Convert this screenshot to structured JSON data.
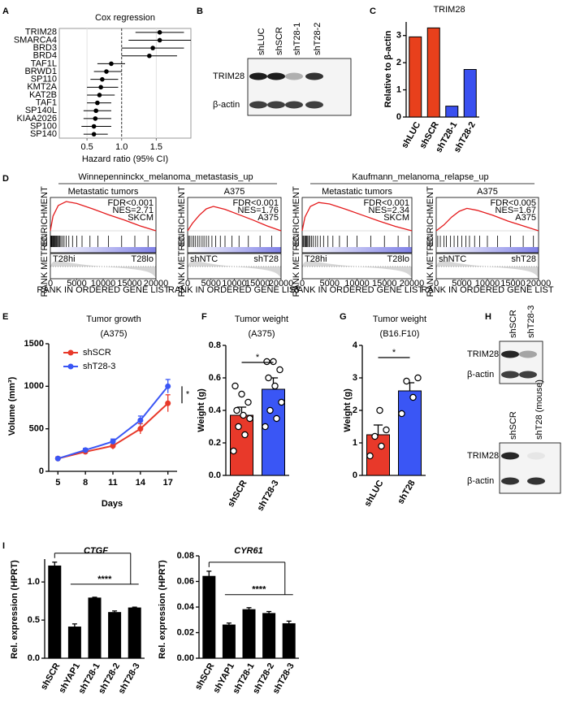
{
  "panels": [
    "A",
    "B",
    "C",
    "D",
    "E",
    "F",
    "G",
    "H",
    "I"
  ],
  "gene_sets": [
    "Winnepenninckx_melanoma_metastasis_up",
    "Kaufmann_melanoma_relapse_up"
  ],
  "blots": [
    {
      "lanes": [
        "shLUC",
        "shSCR",
        "shT28-1",
        "shT28-2"
      ],
      "rows": [
        "TRIM28",
        "β-actin"
      ]
    },
    {
      "lanes": [
        "shSCR",
        "shT28-3"
      ],
      "rows": [
        "TRIM28",
        "β-actin"
      ]
    },
    {
      "lanes": [
        "shSCR",
        "shT28 (mouse)"
      ],
      "rows": [
        "TRIM28",
        "β-actin"
      ]
    }
  ],
  "chart_data": [
    {
      "type": "forest",
      "title": "Cox regression",
      "xlabel": "Hazard ratio (95% CI)",
      "categories": [
        "TRIM28",
        "SMARCA4",
        "BRD3",
        "BRD4",
        "TAF1L",
        "BRWD1",
        "SP110",
        "KMT2A",
        "KAT2B",
        "TAF1",
        "SP140L",
        "KIAA2026",
        "SP100",
        "SP140"
      ],
      "values": [
        1.55,
        1.55,
        1.45,
        1.4,
        0.85,
        0.78,
        0.72,
        0.7,
        0.68,
        0.65,
        0.63,
        0.62,
        0.6,
        0.6
      ],
      "lower": [
        1.2,
        1.1,
        1.0,
        1.0,
        0.65,
        0.6,
        0.55,
        0.5,
        0.5,
        0.5,
        0.45,
        0.45,
        0.42,
        0.45
      ],
      "upper": [
        1.9,
        2.0,
        1.9,
        1.8,
        1.05,
        1.0,
        0.95,
        0.95,
        0.9,
        0.85,
        0.85,
        0.85,
        0.85,
        0.8
      ],
      "reference_line": 1,
      "xlim": [
        0.1,
        2.0
      ],
      "xticks": [
        0.5,
        {
          "value": 1,
          "label": "1.0"
        },
        1.5
      ],
      "grid": true,
      "color": "#000000"
    },
    {
      "type": "bar",
      "title": "TRIM28",
      "ylabel": "Relative to β-actin",
      "categories": [
        "shLUC",
        "shSCR",
        "shT28-1",
        "shT28-2"
      ],
      "values": [
        2.95,
        3.28,
        0.4,
        1.75
      ],
      "colors": [
        "#e8401c",
        "#e8401c",
        "#3a50f0",
        "#3a50f0"
      ],
      "ylim": [
        0,
        3.5
      ],
      "yticks": [
        0,
        1,
        2,
        3
      ]
    },
    {
      "type": "gsea",
      "subtitle": "Metastatic tumors",
      "annotations": [
        "FDR<0.001",
        "NES=2.71",
        "SKCM"
      ],
      "left_label": "T28hi",
      "right_label": "T28lo",
      "ylabel": "ENRICHMENT",
      "ylabel2": "RANK METRIC",
      "xlabel": "RANK IN ORDERED GENE LIST",
      "x": [
        0,
        500,
        1500,
        3000,
        5000,
        8000,
        11000,
        14000,
        17000,
        20000
      ],
      "values": [
        0,
        0.3,
        0.52,
        0.6,
        0.56,
        0.45,
        0.33,
        0.22,
        0.1,
        0
      ],
      "hits": [
        100,
        200,
        300,
        450,
        600,
        700,
        800,
        950,
        1100,
        1250,
        1400,
        1600,
        1800,
        2000,
        2300,
        2600,
        3000,
        3500,
        4200,
        5000,
        6000,
        7500,
        9000,
        11000,
        13500,
        16000,
        18500
      ],
      "color": "#e41a1c",
      "xlim": [
        0,
        20000
      ],
      "ylim": [
        -0.05,
        0.65
      ],
      "xticks": [
        0,
        5000,
        10000,
        15000,
        20000
      ]
    },
    {
      "type": "gsea",
      "subtitle": "A375",
      "annotations": [
        "FDR<0.001",
        "NES=1.76",
        "A375"
      ],
      "left_label": "shNTC",
      "right_label": "shT28",
      "ylabel": "ENRICHMENT",
      "ylabel2": "RANK METRIC",
      "xlabel": "RANK IN ORDERED GENE LIST",
      "x": [
        0,
        1000,
        2500,
        4000,
        5500,
        8000,
        11000,
        14000,
        17000,
        20000
      ],
      "values": [
        0,
        0.15,
        0.32,
        0.45,
        0.5,
        0.44,
        0.33,
        0.22,
        0.1,
        0
      ],
      "hits": [
        200,
        500,
        900,
        1300,
        1700,
        2200,
        2600,
        3100,
        3500,
        4000,
        4500,
        5200,
        6000,
        7000,
        8000,
        9500,
        11000,
        13000,
        15500,
        18000
      ],
      "color": "#e41a1c",
      "xlim": [
        0,
        20000
      ],
      "ylim": [
        -0.05,
        0.65
      ],
      "xticks": [
        0,
        5000,
        10000,
        15000,
        20000
      ]
    },
    {
      "type": "gsea",
      "subtitle": "Metastatic tumors",
      "annotations": [
        "FDR<0.001",
        "NES=2.34",
        "SKCM"
      ],
      "left_label": "T28hi",
      "right_label": "T28lo",
      "ylabel": "ENRICHMENT",
      "ylabel2": "RANK METRIC",
      "xlabel": "RANK IN ORDERED GENE LIST",
      "x": [
        0,
        500,
        1500,
        3000,
        5000,
        8000,
        11000,
        14000,
        17000,
        20000
      ],
      "values": [
        0,
        0.28,
        0.5,
        0.58,
        0.55,
        0.44,
        0.32,
        0.2,
        0.09,
        0
      ],
      "hits": [
        150,
        300,
        500,
        650,
        800,
        1000,
        1200,
        1400,
        1700,
        2000,
        2400,
        2800,
        3300,
        3900,
        4700,
        5600,
        6800,
        8200,
        10000,
        12500,
        15000,
        17500,
        19500
      ],
      "color": "#e41a1c",
      "xlim": [
        0,
        20000
      ],
      "ylim": [
        -0.05,
        0.65
      ],
      "xticks": [
        0,
        5000,
        10000,
        15000,
        20000
      ]
    },
    {
      "type": "gsea",
      "subtitle": "A375",
      "annotations": [
        "FDR<0.005",
        "NES=1.67",
        "A375"
      ],
      "left_label": "shNTC",
      "right_label": "shT28",
      "ylabel": "ENRICHMENT",
      "ylabel2": "RANK METRIC",
      "xlabel": "RANK IN ORDERED GENE LIST",
      "x": [
        0,
        1500,
        3000,
        4500,
        6000,
        8000,
        11000,
        14000,
        17000,
        20000
      ],
      "values": [
        0,
        0.12,
        0.28,
        0.4,
        0.46,
        0.42,
        0.32,
        0.2,
        0.1,
        0
      ],
      "hits": [
        300,
        800,
        1500,
        2000,
        2800,
        3500,
        4200,
        5000,
        5800,
        6500,
        7500,
        8500,
        10000,
        12000,
        14500,
        17000,
        19000
      ],
      "color": "#e41a1c",
      "xlim": [
        0,
        20000
      ],
      "ylim": [
        -0.05,
        0.65
      ],
      "xticks": [
        0,
        5000,
        10000,
        15000,
        20000
      ]
    },
    {
      "type": "line",
      "title": "Tumor growth",
      "subtitle": "(A375)",
      "xlabel": "Days",
      "ylabel": "Volume (mm³)",
      "x": [
        5,
        8,
        11,
        14,
        17
      ],
      "xlim": [
        4,
        18
      ],
      "xticks": [
        5,
        8,
        11,
        14,
        17
      ],
      "ylim": [
        0,
        1500
      ],
      "yticks": [
        0,
        500,
        1000,
        1500
      ],
      "series": [
        {
          "name": "shSCR",
          "color": "#e8392a",
          "values": [
            150,
            230,
            300,
            500,
            800
          ],
          "errors": [
            20,
            20,
            40,
            60,
            100
          ]
        },
        {
          "name": "shT28-3",
          "color": "#3a56f5",
          "values": [
            150,
            250,
            350,
            600,
            1000
          ],
          "errors": [
            15,
            20,
            30,
            50,
            80
          ]
        }
      ],
      "legend": "top-left",
      "annotation": "*"
    },
    {
      "type": "bar",
      "title": "Tumor weight",
      "subtitle": "(A375)",
      "ylabel": "Weight (g)",
      "categories": [
        "shSCR",
        "shT28-3"
      ],
      "values": [
        0.37,
        0.53
      ],
      "errors": [
        0.05,
        0.07
      ],
      "colors": [
        "#e8392a",
        "#3a56f5"
      ],
      "points": [
        [
          0.15,
          0.25,
          0.3,
          0.35,
          0.37,
          0.4,
          0.45,
          0.5,
          0.55
        ],
        [
          0.3,
          0.35,
          0.4,
          0.45,
          0.55,
          0.6,
          0.65,
          0.7,
          0.7
        ]
      ],
      "ylim": [
        0,
        0.8
      ],
      "yticks": [
        {
          "value": 0,
          "label": "0.0"
        },
        0.2,
        0.4,
        0.6,
        0.8
      ],
      "annotation": "*"
    },
    {
      "type": "bar",
      "title": "Tumor weight",
      "subtitle": "(B16.F10)",
      "ylabel": "Weight (g)",
      "categories": [
        "shLUC",
        "shT28"
      ],
      "values": [
        1.25,
        2.6
      ],
      "errors": [
        0.3,
        0.25
      ],
      "colors": [
        "#e8392a",
        "#3a56f5"
      ],
      "points": [
        [
          0.6,
          0.9,
          1.2,
          1.4,
          2.0
        ],
        [
          1.9,
          2.4,
          2.9,
          3.0
        ]
      ],
      "ylim": [
        0,
        4
      ],
      "yticks": [
        0,
        1,
        2,
        3,
        4
      ],
      "annotation": "*"
    },
    {
      "type": "bar",
      "title": "CTGF",
      "ylabel": "Rel. expression (HPRT)",
      "categories": [
        "shSCR",
        "shYAP1",
        "shT28-1",
        "shT28-2",
        "shT28-3"
      ],
      "values": [
        1.21,
        0.41,
        0.79,
        0.6,
        0.66
      ],
      "errors": [
        0.05,
        0.04,
        0.01,
        0.02,
        0.01
      ],
      "color": "#000000",
      "ylim": [
        0,
        1.3
      ],
      "yticks": [
        {
          "value": 0,
          "label": "0.0"
        },
        0.5,
        {
          "value": 1,
          "label": "1.0"
        }
      ],
      "annotation": "****"
    },
    {
      "type": "bar",
      "title": "CYR61",
      "ylabel": "Rel. expression (HPRT)",
      "categories": [
        "shSCR",
        "shYAP1",
        "shT28-1",
        "shT28-2",
        "shT28-3"
      ],
      "values": [
        0.064,
        0.026,
        0.038,
        0.035,
        0.027
      ],
      "errors": [
        0.004,
        0.0015,
        0.0015,
        0.0015,
        0.002
      ],
      "color": "#000000",
      "ylim": [
        0,
        0.08
      ],
      "yticks": [
        {
          "value": 0,
          "label": "0.00"
        },
        0.02,
        0.04,
        0.06,
        0.08
      ],
      "annotation": "****"
    }
  ]
}
